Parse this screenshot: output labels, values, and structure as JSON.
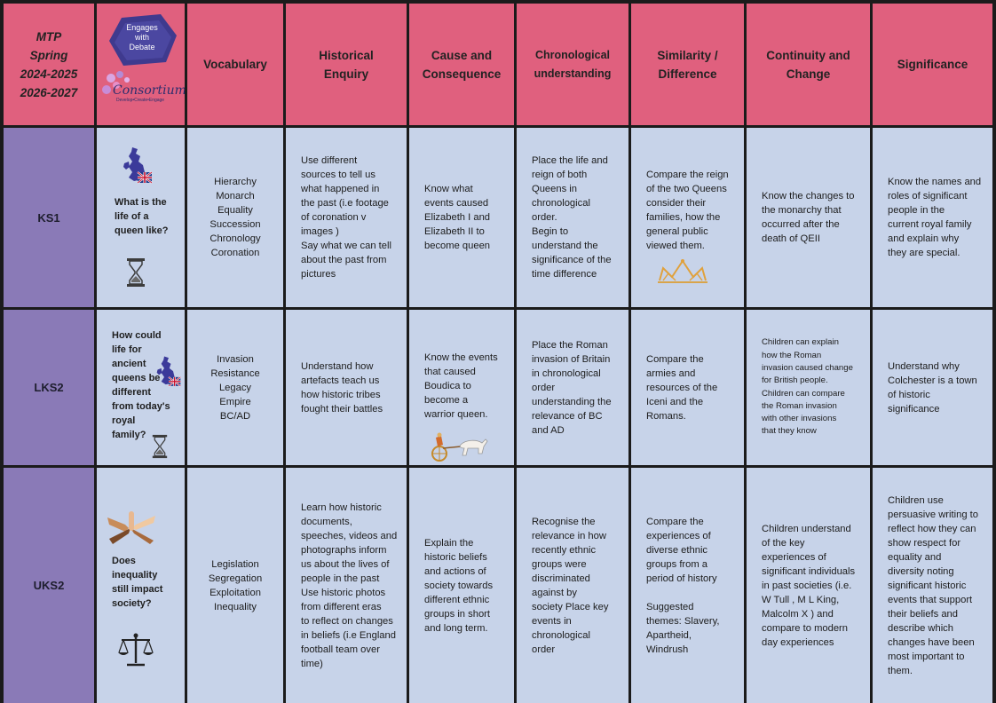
{
  "header": {
    "title": "MTP\nSpring\n2024-2025\n2026-2027",
    "logo_badge": "Engages\nwith\nDebate",
    "logo_wordmark": "Consortium",
    "logo_tagline": "Develop•Create•Engage",
    "columns": [
      "Vocabulary",
      "Historical\nEnquiry",
      "Cause and\nConsequence",
      "Chronological\nunderstanding",
      "Similarity /\nDifference",
      "Continuity and\nChange",
      "Significance"
    ]
  },
  "rows": [
    {
      "stage": "KS1",
      "question": "What is the\nlife of a\nqueen like?",
      "icons": [
        "uk-map-icon",
        "hourglass-icon"
      ],
      "cells": [
        "Hierarchy\nMonarch\nEquality\nSuccession\nChronology\nCoronation",
        "Use different\nsources to tell us\nwhat happened in\nthe past  (i.e footage\nof coronation v\nimages )\nSay what we can tell\nabout the past from\npictures",
        "Know what\nevents caused\nElizabeth I and\nElizabeth II  to\nbecome queen",
        "Place the life and\nreign of both\nQueens in\nchronological\norder.\nBegin to\nunderstand the\nsignificance of the\ntime difference",
        "Compare the reign\nof the two Queens\nconsider their\nfamilies, how the\ngeneral public\nviewed them.",
        "Know the changes to\nthe monarchy that\noccurred after the\ndeath of QEII",
        "Know the names and\nroles of significant\npeople in the\ncurrent royal family\nand explain why\nthey are special."
      ]
    },
    {
      "stage": "LKS2",
      "question": "How could\nlife for\nancient\nqueens be\ndifferent\nfrom today's\nroyal\nfamily?",
      "icons": [
        "uk-map-icon",
        "hourglass-icon",
        "chariot-icon"
      ],
      "cells": [
        "Invasion\nResistance\nLegacy\nEmpire\nBC/AD",
        "Understand  how\nartefacts teach us\nhow historic tribes\nfought their battles",
        "Know the events\nthat caused\nBoudica to\nbecome a\nwarrior queen.",
        "Place the Roman\ninvasion of Britain\nin chronological\norder\nunderstanding the\nrelevance of BC\nand AD",
        "Compare the\narmies and\nresources of the\nIceni and the\nRomans.",
        "Children can explain\nhow the Roman\ninvasion caused change\nfor British people.\nChildren can compare\nthe Roman invasion\nwith other invasions\nthat they know",
        "Understand why\nColchester is a town\nof historic\nsignificance"
      ]
    },
    {
      "stage": "UKS2",
      "question": "Does\ninequality\nstill impact\nsociety?",
      "icons": [
        "joined-hands-icon",
        "scales-icon"
      ],
      "cells": [
        "Legislation\nSegregation\nExploitation\nInequality",
        "Learn how historic\ndocuments,\nspeeches, videos and\nphotographs inform\nus about the lives of\npeople in the past\nUse historic photos\nfrom different eras\nto reflect on changes\nin beliefs (i.e England\nfootball team over\ntime)",
        "Explain the\nhistoric  beliefs\nand actions of\nsociety towards\ndifferent ethnic\ngroups in short\nand long term.",
        "Recognise the\nrelevance in how\nrecently ethnic\ngroups were\ndiscriminated\nagainst by\nsociety   Place key\nevents in\n chronological\norder",
        "Compare the\nexperiences of\ndiverse ethnic\ngroups from a\nperiod of history\n\nSuggested\nthemes: Slavery,\nApartheid,\nWindrush",
        "Children understand\nof  the key\nexperiences of\nsignificant individuals\nin past societies (i.e.\nW Tull , M L King,\nMalcolm X ) and\ncompare to modern\nday experiences",
        "Children use\npersuasive writing to\nreflect how they can\nshow respect for\nequality and\ndiversity noting\nsignificant historic\nevents that support\ntheir beliefs and\ndescribe which\nchanges have been\nmost important to\nthem."
      ]
    }
  ],
  "colors": {
    "header": "#e0607e",
    "stage": "#8a7ab7",
    "body": "#c7d3e9",
    "border": "#1b1b1b"
  }
}
